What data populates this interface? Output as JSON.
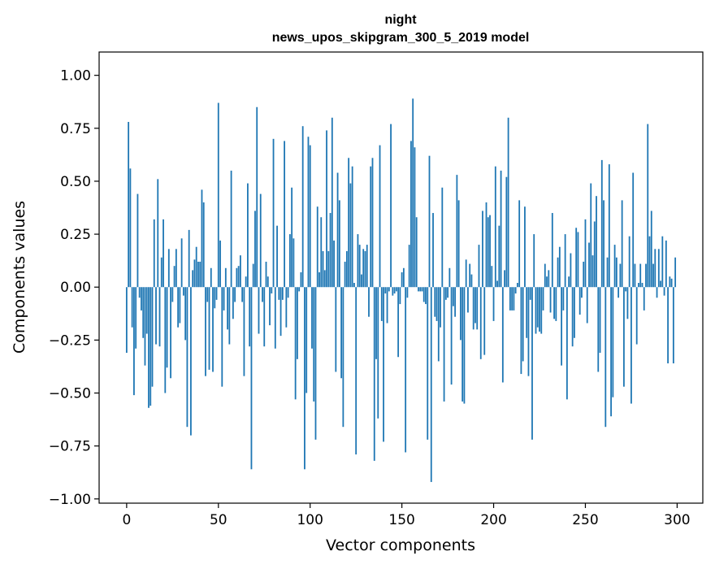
{
  "chart_data": {
    "type": "bar",
    "title_lines": [
      "night",
      "news_upos_skipgram_300_5_2019 model"
    ],
    "xlabel": "Vector components",
    "ylabel": "Components values",
    "xlim": [
      -15,
      314
    ],
    "ylim": [
      -1.02,
      1.11
    ],
    "xticks": [
      0,
      50,
      100,
      150,
      200,
      250,
      300
    ],
    "yticks": [
      -1.0,
      -0.75,
      -0.5,
      -0.25,
      0.0,
      0.25,
      0.5,
      0.75,
      1.0
    ],
    "ytick_labels": [
      "−1.00",
      "−0.75",
      "−0.50",
      "−0.25",
      "0.00",
      "0.25",
      "0.50",
      "0.75",
      "1.00"
    ],
    "bar_color": "#1f77b4",
    "grid": false,
    "x": "0..299",
    "values": [
      -0.31,
      0.78,
      0.56,
      -0.19,
      -0.51,
      -0.29,
      0.44,
      -0.05,
      -0.11,
      -0.24,
      -0.37,
      -0.22,
      -0.57,
      -0.56,
      -0.47,
      0.32,
      -0.27,
      0.51,
      -0.28,
      0.14,
      0.32,
      -0.5,
      -0.38,
      0.18,
      -0.43,
      -0.07,
      0.1,
      0.18,
      -0.19,
      -0.17,
      0.23,
      -0.04,
      -0.25,
      -0.66,
      0.27,
      -0.7,
      0.08,
      0.13,
      0.19,
      0.12,
      0.12,
      0.46,
      0.4,
      -0.42,
      -0.07,
      -0.39,
      0.09,
      -0.4,
      -0.1,
      -0.06,
      0.87,
      0.22,
      -0.47,
      -0.11,
      0.09,
      -0.2,
      -0.27,
      0.55,
      -0.15,
      -0.07,
      0.09,
      0.1,
      0.15,
      -0.07,
      -0.42,
      0.05,
      0.49,
      -0.28,
      -0.86,
      0.11,
      0.36,
      0.85,
      -0.22,
      0.44,
      -0.07,
      -0.28,
      0.12,
      0.05,
      -0.18,
      -0.03,
      0.7,
      -0.29,
      0.29,
      -0.06,
      -0.23,
      -0.06,
      0.69,
      -0.19,
      -0.05,
      0.25,
      0.47,
      0.23,
      -0.53,
      -0.34,
      -0.02,
      0.07,
      0.76,
      -0.86,
      -0.5,
      0.71,
      0.67,
      -0.29,
      -0.54,
      -0.72,
      0.38,
      0.07,
      0.33,
      0.17,
      0.08,
      0.74,
      0.17,
      0.35,
      0.8,
      0.22,
      -0.4,
      0.54,
      0.41,
      -0.43,
      -0.66,
      0.12,
      0.17,
      0.61,
      0.49,
      0.57,
      0.02,
      -0.79,
      0.25,
      0.2,
      0.06,
      0.18,
      0.17,
      0.2,
      -0.14,
      0.57,
      0.61,
      -0.82,
      -0.34,
      -0.62,
      0.67,
      -0.16,
      -0.73,
      -0.03,
      -0.17,
      -0.02,
      0.77,
      -0.04,
      -0.03,
      -0.02,
      -0.33,
      -0.08,
      0.07,
      0.09,
      -0.78,
      -0.05,
      0.2,
      0.69,
      0.89,
      0.66,
      0.33,
      -0.02,
      -0.02,
      -0.02,
      -0.07,
      -0.08,
      -0.72,
      0.62,
      -0.92,
      0.35,
      -0.14,
      -0.16,
      -0.35,
      -0.19,
      0.47,
      -0.54,
      -0.06,
      -0.05,
      0.09,
      -0.46,
      -0.09,
      -0.14,
      0.53,
      0.41,
      -0.25,
      -0.54,
      -0.55,
      0.13,
      -0.12,
      0.11,
      0.06,
      -0.2,
      -0.17,
      -0.2,
      0.2,
      -0.34,
      0.36,
      -0.32,
      0.4,
      0.33,
      0.34,
      0.1,
      -0.16,
      0.57,
      0.03,
      0.29,
      0.55,
      -0.45,
      0.08,
      0.52,
      0.8,
      -0.11,
      -0.11,
      -0.11,
      -0.03,
      0.02,
      0.41,
      -0.41,
      -0.35,
      0.38,
      -0.24,
      -0.42,
      -0.06,
      -0.72,
      0.25,
      -0.22,
      -0.19,
      -0.21,
      -0.22,
      -0.11,
      0.11,
      0.05,
      0.08,
      -0.12,
      0.35,
      -0.15,
      -0.16,
      0.14,
      0.19,
      -0.37,
      -0.11,
      0.25,
      -0.53,
      0.05,
      0.16,
      -0.28,
      -0.24,
      0.28,
      0.26,
      -0.13,
      -0.05,
      0.12,
      0.32,
      -0.17,
      0.21,
      0.49,
      0.15,
      0.31,
      0.43,
      -0.4,
      -0.31,
      0.6,
      0.41,
      -0.66,
      0.14,
      0.58,
      -0.61,
      -0.52,
      0.2,
      0.14,
      -0.05,
      0.11,
      0.41,
      -0.47,
      -0.02,
      -0.15,
      0.24,
      -0.55,
      0.54,
      0.11,
      -0.27,
      0.02,
      0.11,
      0.02,
      -0.11,
      0.11,
      0.77,
      0.24,
      0.36,
      0.11,
      0.18,
      -0.05,
      0.18,
      0.03,
      0.24,
      -0.04,
      0.22,
      -0.36,
      0.05,
      0.04,
      -0.36,
      0.14
    ]
  }
}
